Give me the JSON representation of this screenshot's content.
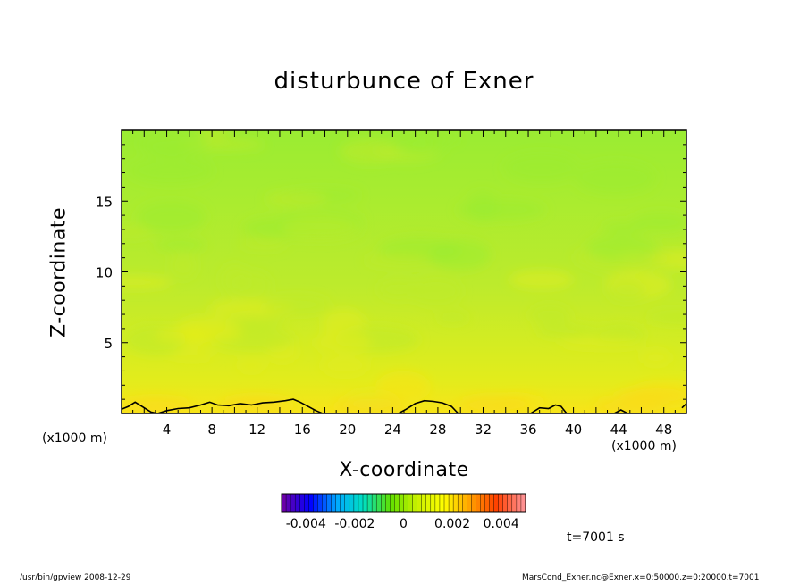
{
  "chart_data": {
    "type": "heatmap",
    "title": "disturbunce of Exner",
    "xlabel": "X-coordinate",
    "ylabel": "Z-coordinate",
    "x_unit": "(x1000 m)",
    "y_unit": "(x1000 m)",
    "xlim": [
      0,
      50
    ],
    "ylim": [
      0,
      20
    ],
    "x_ticks": [
      4,
      8,
      12,
      16,
      20,
      24,
      28,
      32,
      36,
      40,
      44,
      48
    ],
    "y_ticks": [
      5,
      10,
      15
    ],
    "grid": false,
    "colorbar": {
      "min": -0.005,
      "max": 0.005,
      "tick_values": [
        -0.004,
        -0.002,
        0,
        0.002,
        0.004
      ],
      "tick_labels": [
        "-0.004",
        "-0.002",
        "0",
        "0.002",
        "0.004"
      ],
      "colors": [
        "#6a00a8",
        "#0000ff",
        "#00aaff",
        "#00e0c0",
        "#60e000",
        "#c8f000",
        "#ffff00",
        "#ffa000",
        "#ff4000",
        "#ff9090"
      ]
    },
    "field_colors": {
      "near_surface": "#f8e418",
      "low": "#e2ec1c",
      "mid": "#bdeb2c",
      "upper": "#9aec32"
    },
    "contour_zero": {
      "x": [
        0,
        0.6,
        1.2,
        1.8,
        2.6,
        3.2,
        4.0,
        5.0,
        6.0,
        7.0,
        7.8,
        8.5,
        9.5,
        10.5,
        11.5,
        12.5,
        13.5,
        14.5,
        15.2,
        15.8,
        16.5,
        17.2,
        17.8
      ],
      "z": [
        0.3,
        0.5,
        0.8,
        0.5,
        0.1,
        0,
        0.2,
        0.35,
        0.4,
        0.6,
        0.8,
        0.6,
        0.55,
        0.7,
        0.6,
        0.75,
        0.8,
        0.9,
        1.0,
        0.8,
        0.5,
        0.2,
        0
      ],
      "x2": [
        24.5,
        25.2,
        26.0,
        26.8,
        27.6,
        28.4,
        29.2,
        29.8
      ],
      "z2": [
        0,
        0.3,
        0.7,
        0.9,
        0.85,
        0.75,
        0.5,
        0
      ],
      "x3": [
        36.2,
        37.0,
        37.8,
        38.4,
        38.9,
        39.4
      ],
      "z3": [
        0,
        0.4,
        0.35,
        0.6,
        0.5,
        0
      ],
      "x4": [
        43.6,
        44.2,
        44.8
      ],
      "z4": [
        0,
        0.25,
        0
      ],
      "x5": [
        49.6,
        50.0
      ],
      "z5": [
        0.4,
        0.7
      ]
    },
    "time_label": "t=7001 s"
  },
  "footer": {
    "left": "/usr/bin/gpview  2008-12-29",
    "right": "MarsCond_Exner.nc@Exner,x=0:50000,z=0:20000,t=7001"
  }
}
